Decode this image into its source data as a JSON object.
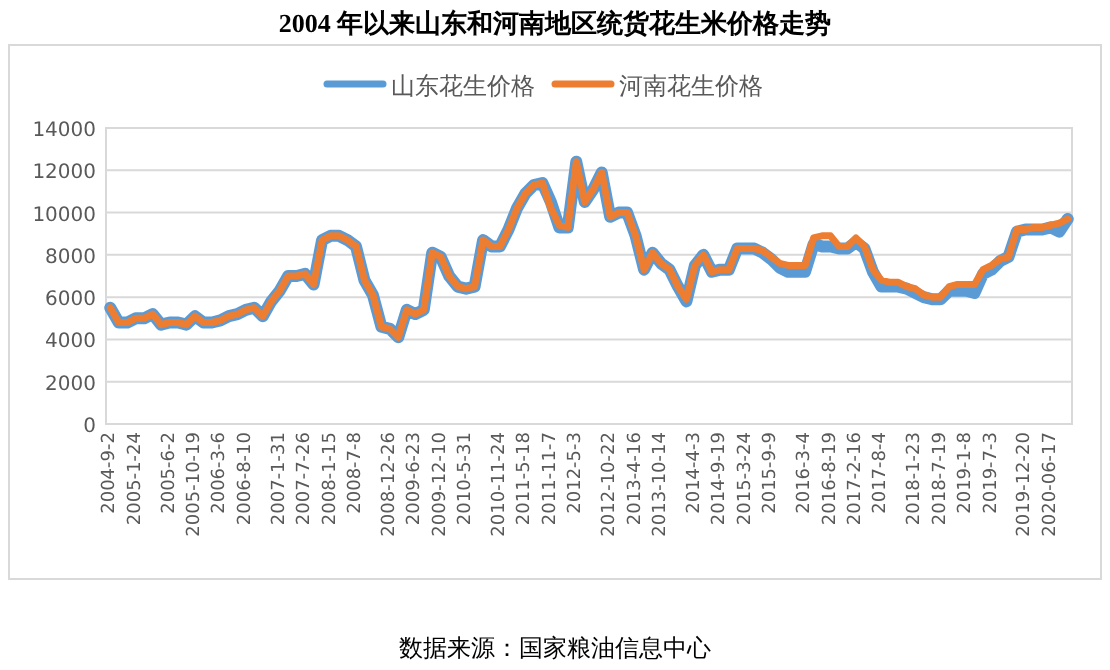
{
  "chart_data": {
    "type": "line",
    "title": "2004 年以来山东和河南地区统货花生米价格走势",
    "legend": "top",
    "grid": "y",
    "ylim": [
      0,
      14000
    ],
    "yticks": [
      0,
      2000,
      4000,
      6000,
      8000,
      10000,
      12000,
      14000
    ],
    "annotations": [
      "数据来源：国家粮油信息中心"
    ],
    "categories": [
      "2004-9-2",
      null,
      null,
      "2005-1-24",
      null,
      null,
      null,
      "2005-6-2",
      null,
      null,
      "2005-10-19",
      null,
      null,
      "2006-3-6",
      null,
      null,
      "2006-8-10",
      null,
      null,
      null,
      "2007-1-31",
      null,
      null,
      "2007-7-26",
      null,
      null,
      "2008-1-15",
      null,
      null,
      "2008-7-8",
      null,
      null,
      null,
      "2008-12-26",
      null,
      null,
      "2009-6-23",
      null,
      null,
      "2009-12-10",
      null,
      null,
      "2010-5-31",
      null,
      null,
      null,
      "2010-11-24",
      null,
      null,
      "2011-5-18",
      null,
      null,
      "2011-11-7",
      null,
      null,
      "2012-5-3",
      null,
      null,
      null,
      "2012-10-22",
      null,
      null,
      "2013-4-16",
      null,
      null,
      "2013-10-14",
      null,
      null,
      null,
      "2014-4-3",
      null,
      null,
      "2014-9-19",
      null,
      null,
      "2015-3-24",
      null,
      null,
      "2015-9-9",
      null,
      null,
      null,
      "2016-3-4",
      null,
      null,
      "2016-8-19",
      null,
      null,
      "2017-2-16",
      null,
      null,
      "2017-8-4",
      null,
      null,
      null,
      "2018-1-23",
      null,
      null,
      "2018-7-19",
      null,
      null,
      "2019-1-8",
      null,
      null,
      "2019-7-3",
      null,
      null,
      null,
      "2019-12-20",
      null,
      null,
      "2020-06-17",
      null,
      null
    ],
    "series": [
      {
        "name": "山东花生价格",
        "color": "#5b9bd5",
        "values": [
          5500,
          4800,
          4800,
          5000,
          5000,
          5200,
          4700,
          4800,
          4800,
          4700,
          5100,
          4800,
          4800,
          4900,
          5100,
          5200,
          5400,
          5500,
          5100,
          5800,
          6300,
          7000,
          7000,
          7100,
          6600,
          8700,
          8900,
          8900,
          8700,
          8400,
          6800,
          6100,
          4600,
          4500,
          4100,
          5400,
          5200,
          5400,
          8100,
          7900,
          7000,
          6500,
          6400,
          6500,
          8700,
          8400,
          8400,
          9200,
          10200,
          10900,
          11300,
          11400,
          10500,
          9300,
          9300,
          12400,
          10500,
          11100,
          11900,
          9800,
          10000,
          10000,
          8900,
          7300,
          8100,
          7600,
          7300,
          6500,
          5800,
          7500,
          8000,
          7200,
          7300,
          7300,
          8300,
          8300,
          8300,
          8100,
          7800,
          7400,
          7200,
          7200,
          7200,
          8500,
          8400,
          8400,
          8300,
          8300,
          8600,
          8300,
          7200,
          6500,
          6500,
          6500,
          6400,
          6200,
          6000,
          5900,
          5900,
          6300,
          6300,
          6300,
          6200,
          7100,
          7300,
          7700,
          7900,
          9100,
          9200,
          9200,
          9200,
          9300,
          9100,
          9700
        ]
      },
      {
        "name": "河南花生价格",
        "color": "#ed7d31",
        "values": [
          5500,
          4800,
          4800,
          5000,
          5000,
          5200,
          4700,
          4800,
          4800,
          4700,
          5100,
          4800,
          4800,
          4900,
          5100,
          5200,
          5400,
          5500,
          5100,
          5800,
          6300,
          7000,
          7000,
          7100,
          6600,
          8700,
          8900,
          8900,
          8700,
          8400,
          6800,
          6100,
          4600,
          4500,
          4100,
          5400,
          5200,
          5400,
          8100,
          7900,
          7000,
          6500,
          6400,
          6500,
          8700,
          8400,
          8400,
          9200,
          10200,
          10900,
          11300,
          11400,
          10200,
          9400,
          9300,
          12400,
          10500,
          11100,
          11900,
          9800,
          10000,
          10000,
          8900,
          7300,
          8100,
          7600,
          7300,
          6500,
          5900,
          7500,
          8000,
          7200,
          7300,
          7300,
          8300,
          8300,
          8300,
          8200,
          7900,
          7600,
          7500,
          7500,
          7500,
          8800,
          8900,
          8900,
          8400,
          8400,
          8800,
          8400,
          7300,
          6800,
          6700,
          6700,
          6500,
          6400,
          6100,
          6000,
          6000,
          6500,
          6600,
          6600,
          6600,
          7300,
          7500,
          7800,
          7900,
          9200,
          9200,
          9300,
          9300,
          9400,
          9500,
          9700
        ]
      }
    ]
  }
}
